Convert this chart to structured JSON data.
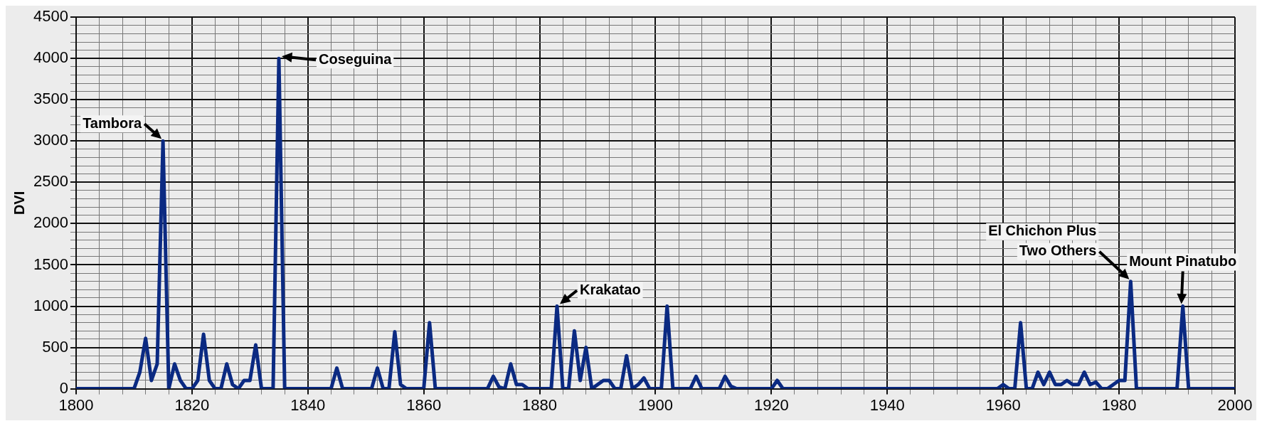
{
  "chart_data": {
    "type": "line",
    "ylabel": "DVI",
    "xlim": [
      1800,
      2000
    ],
    "xticks": [
      1800,
      {
        "value": 1804,
        "label": null
      },
      {
        "value": 1808,
        "label": null
      },
      {
        "value": 1812,
        "label": null
      },
      {
        "value": 1816,
        "label": null
      },
      1820,
      {
        "value": 1824,
        "label": null
      },
      {
        "value": 1828,
        "label": null
      },
      {
        "value": 1832,
        "label": null
      },
      {
        "value": 1836,
        "label": null
      },
      1840,
      {
        "value": 1844,
        "label": null
      },
      {
        "value": 1848,
        "label": null
      },
      {
        "value": 1852,
        "label": null
      },
      {
        "value": 1856,
        "label": null
      },
      1860,
      {
        "value": 1864,
        "label": null
      },
      {
        "value": 1868,
        "label": null
      },
      {
        "value": 1872,
        "label": null
      },
      {
        "value": 1876,
        "label": null
      },
      1880,
      {
        "value": 1884,
        "label": null
      },
      {
        "value": 1888,
        "label": null
      },
      {
        "value": 1892,
        "label": null
      },
      {
        "value": 1896,
        "label": null
      },
      1900,
      {
        "value": 1904,
        "label": null
      },
      {
        "value": 1908,
        "label": null
      },
      {
        "value": 1912,
        "label": null
      },
      {
        "value": 1916,
        "label": null
      },
      1920,
      {
        "value": 1924,
        "label": null
      },
      {
        "value": 1928,
        "label": null
      },
      {
        "value": 1932,
        "label": null
      },
      {
        "value": 1936,
        "label": null
      },
      1940,
      {
        "value": 1944,
        "label": null
      },
      {
        "value": 1948,
        "label": null
      },
      {
        "value": 1952,
        "label": null
      },
      {
        "value": 1956,
        "label": null
      },
      1960,
      {
        "value": 1964,
        "label": null
      },
      {
        "value": 1968,
        "label": null
      },
      {
        "value": 1972,
        "label": null
      },
      {
        "value": 1976,
        "label": null
      },
      1980,
      {
        "value": 1984,
        "label": null
      },
      {
        "value": 1988,
        "label": null
      },
      {
        "value": 1992,
        "label": null
      },
      {
        "value": 1996,
        "label": null
      },
      2000
    ],
    "ylim": [
      0,
      4500
    ],
    "yticks": [
      0,
      {
        "value": 100,
        "label": null
      },
      {
        "value": 200,
        "label": null
      },
      {
        "value": 300,
        "label": null
      },
      {
        "value": 400,
        "label": null
      },
      500,
      {
        "value": 600,
        "label": null
      },
      {
        "value": 700,
        "label": null
      },
      {
        "value": 800,
        "label": null
      },
      {
        "value": 900,
        "label": null
      },
      1000,
      {
        "value": 1100,
        "label": null
      },
      {
        "value": 1200,
        "label": null
      },
      {
        "value": 1300,
        "label": null
      },
      {
        "value": 1400,
        "label": null
      },
      1500,
      {
        "value": 1600,
        "label": null
      },
      {
        "value": 1700,
        "label": null
      },
      {
        "value": 1800,
        "label": null
      },
      {
        "value": 1900,
        "label": null
      },
      2000,
      {
        "value": 2100,
        "label": null
      },
      {
        "value": 2200,
        "label": null
      },
      {
        "value": 2300,
        "label": null
      },
      {
        "value": 2400,
        "label": null
      },
      2500,
      {
        "value": 2600,
        "label": null
      },
      {
        "value": 2700,
        "label": null
      },
      {
        "value": 2800,
        "label": null
      },
      {
        "value": 2900,
        "label": null
      },
      3000,
      {
        "value": 3100,
        "label": null
      },
      {
        "value": 3200,
        "label": null
      },
      {
        "value": 3300,
        "label": null
      },
      {
        "value": 3400,
        "label": null
      },
      3500,
      {
        "value": 3600,
        "label": null
      },
      {
        "value": 3700,
        "label": null
      },
      {
        "value": 3800,
        "label": null
      },
      {
        "value": 3900,
        "label": null
      },
      4000,
      {
        "value": 4100,
        "label": null
      },
      {
        "value": 4200,
        "label": null
      },
      {
        "value": 4300,
        "label": null
      },
      {
        "value": 4400,
        "label": null
      },
      4500
    ],
    "grid": true,
    "legend": false,
    "marker": "none",
    "line_style": "solid",
    "x": [
      1800,
      1810,
      1811,
      1812,
      1813,
      1814,
      1815,
      1816,
      1817,
      1818,
      1819,
      1820,
      1821,
      1822,
      1823,
      1824,
      1825,
      1826,
      1827,
      1828,
      1829,
      1830,
      1831,
      1832,
      1834,
      1835,
      1836,
      1844,
      1845,
      1846,
      1851,
      1852,
      1853,
      1854,
      1855,
      1856,
      1857,
      1860,
      1861,
      1862,
      1871,
      1872,
      1873,
      1874,
      1875,
      1876,
      1877,
      1878,
      1882,
      1883,
      1884,
      1885,
      1886,
      1887,
      1888,
      1889,
      1891,
      1892,
      1893,
      1894,
      1895,
      1896,
      1897,
      1898,
      1899,
      1901,
      1902,
      1903,
      1906,
      1907,
      1908,
      1911,
      1912,
      1913,
      1914,
      1920,
      1921,
      1922,
      1959,
      1960,
      1961,
      1962,
      1963,
      1964,
      1965,
      1966,
      1967,
      1968,
      1969,
      1970,
      1971,
      1972,
      1973,
      1974,
      1975,
      1976,
      1977,
      1978,
      1979,
      1980,
      1981,
      1982,
      1983,
      1990,
      1991,
      1992,
      2000
    ],
    "series": [
      {
        "color": "#0b2a82",
        "values": [
          0,
          0,
          200,
          610,
          100,
          300,
          3000,
          0,
          300,
          100,
          0,
          0,
          100,
          660,
          100,
          0,
          0,
          300,
          50,
          0,
          100,
          100,
          530,
          0,
          0,
          4000,
          0,
          0,
          250,
          0,
          0,
          250,
          0,
          0,
          690,
          50,
          0,
          0,
          800,
          0,
          0,
          150,
          20,
          0,
          300,
          50,
          50,
          0,
          0,
          1000,
          0,
          0,
          700,
          100,
          500,
          0,
          100,
          100,
          0,
          0,
          400,
          0,
          50,
          130,
          0,
          0,
          1000,
          0,
          0,
          150,
          0,
          0,
          150,
          30,
          0,
          0,
          100,
          0,
          0,
          50,
          0,
          0,
          800,
          0,
          0,
          200,
          50,
          200,
          50,
          50,
          100,
          50,
          50,
          200,
          50,
          80,
          0,
          0,
          50,
          100,
          100,
          1300,
          0,
          0,
          1000,
          0,
          0
        ]
      }
    ],
    "annotations": [
      {
        "text": "Tambora",
        "x": 1815,
        "y": 3000
      },
      {
        "text": "Coseguina",
        "x": 1835,
        "y": 4000
      },
      {
        "text": "Krakatao",
        "x": 1883,
        "y": 1000
      },
      {
        "text": "El Chichon Plus\nTwo Others",
        "x": 1982,
        "y": 1300
      },
      {
        "text": "Mount Pinatubo",
        "x": 1991,
        "y": 1000
      }
    ]
  }
}
